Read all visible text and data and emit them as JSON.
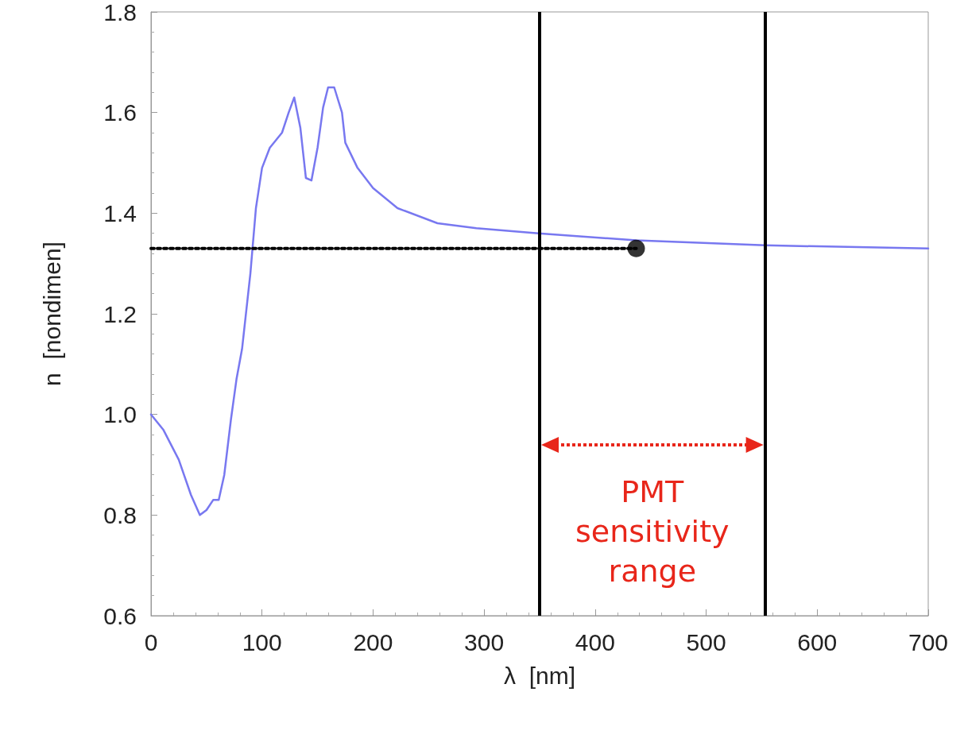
{
  "chart_data": {
    "type": "line",
    "xlabel": "λ  [nm]",
    "ylabel": "n  [nondimen]",
    "xlim": [
      0,
      700
    ],
    "xticks": [
      0,
      100,
      200,
      300,
      400,
      500,
      600,
      700
    ],
    "ylim": [
      0.6,
      1.8
    ],
    "yticks": [
      0.6,
      0.8,
      {
        "value": 1.0,
        "label": "1.0"
      },
      1.2,
      1.4,
      1.6,
      1.8
    ],
    "grid": false,
    "marker": "none",
    "series": [
      {
        "color": "#7878f0",
        "line_style": "solid",
        "x": [
          0,
          11,
          25,
          36,
          44,
          50,
          56,
          61,
          66,
          72,
          77,
          82,
          89.5,
          94.5,
          100,
          107,
          118,
          124,
          129,
          134.5,
          139.5,
          144.5,
          150,
          155,
          159.5,
          165,
          172,
          175,
          186,
          200,
          222,
          258,
          293,
          349,
          437,
          553,
          700
        ],
        "values": [
          1.0,
          0.97,
          0.91,
          0.84,
          0.8,
          0.81,
          0.83,
          0.83,
          0.88,
          0.99,
          1.07,
          1.13,
          1.28,
          1.41,
          1.49,
          1.53,
          1.56,
          1.6,
          1.63,
          1.57,
          1.47,
          1.465,
          1.53,
          1.61,
          1.65,
          1.65,
          1.6,
          1.54,
          1.49,
          1.45,
          1.41,
          1.38,
          1.37,
          1.36,
          1.346,
          1.336,
          1.33
        ]
      },
      {
        "type": "line",
        "color": "#000000",
        "line_style": "dotted",
        "x": [
          0,
          437
        ],
        "values": [
          1.33,
          1.33
        ]
      },
      {
        "type": "scatter",
        "color": "#000000",
        "marker": "circle",
        "x": [
          437
        ],
        "values": [
          1.33
        ]
      }
    ],
    "ref_lines": [
      {
        "axis": "x",
        "value": 350,
        "color": "#000000"
      },
      {
        "axis": "x",
        "value": 553,
        "color": "#000000"
      }
    ],
    "annotations": [
      "PMT\nsensitivity\nrange"
    ]
  }
}
